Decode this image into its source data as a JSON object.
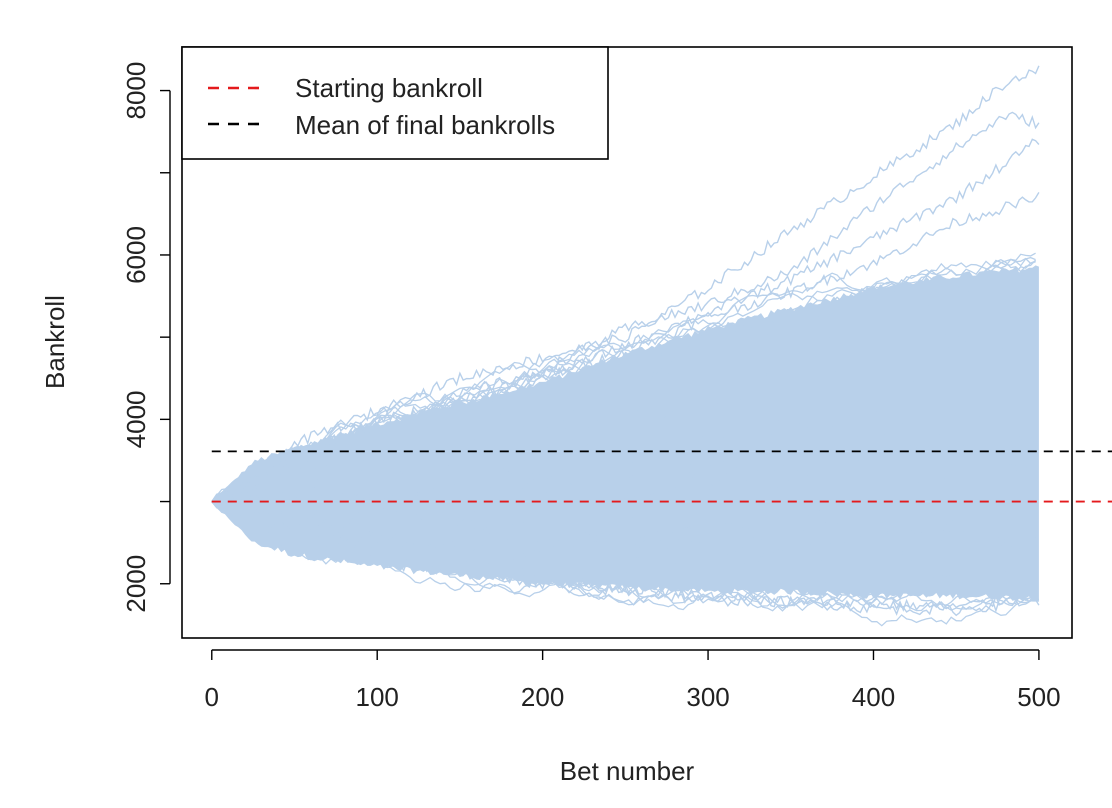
{
  "chart_data": {
    "type": "line",
    "title": "",
    "xlabel": "Bet number",
    "ylabel": "Bankroll",
    "xlim": [
      -18,
      520
    ],
    "ylim": [
      1340,
      8530
    ],
    "x_ticks": [
      0,
      100,
      200,
      300,
      400,
      500
    ],
    "y_ticks": [
      2000,
      4000,
      6000,
      8000
    ],
    "x_tick_labels": [
      "0",
      "100",
      "200",
      "300",
      "400",
      "500"
    ],
    "y_tick_labels": [
      "2000",
      "4000",
      "6000",
      "8000"
    ],
    "grid": false,
    "legend_position": "top-left",
    "simulation": {
      "start_bet": 0,
      "end_bet": 500,
      "starting_value": 3000,
      "color": "#b8d0ea"
    },
    "reference_lines": [
      {
        "name": "Starting bankroll",
        "y": 3000,
        "color": "#e41a1c",
        "style": "dashed"
      },
      {
        "name": "Mean of final bankrolls",
        "y": 3610,
        "color": "#000000",
        "style": "dashed"
      }
    ],
    "envelope": {
      "x": [
        0,
        25,
        50,
        100,
        150,
        200,
        250,
        300,
        350,
        400,
        450,
        500
      ],
      "upper_dense": [
        3000,
        3480,
        3650,
        3950,
        4200,
        4450,
        4800,
        5100,
        5350,
        5600,
        5750,
        5850
      ],
      "lower_dense": [
        3000,
        2500,
        2350,
        2200,
        2100,
        2000,
        1950,
        1900,
        1900,
        1850,
        1850,
        1820
      ]
    },
    "extreme_paths": [
      {
        "x": [
          0,
          50,
          100,
          150,
          200,
          250,
          300,
          350,
          400,
          450,
          480,
          500
        ],
        "y": [
          3000,
          3700,
          4100,
          4500,
          4750,
          5000,
          5600,
          6300,
          6950,
          7600,
          8100,
          8250
        ]
      },
      {
        "x": [
          0,
          50,
          100,
          150,
          200,
          250,
          300,
          350,
          400,
          450,
          480,
          500
        ],
        "y": [
          3000,
          3600,
          3900,
          4300,
          4600,
          5100,
          5400,
          5800,
          6600,
          7300,
          7700,
          7600
        ]
      },
      {
        "x": [
          0,
          50,
          100,
          150,
          200,
          250,
          300,
          350,
          400,
          450,
          500
        ],
        "y": [
          3000,
          3500,
          4000,
          4200,
          4500,
          4900,
          5300,
          5700,
          6200,
          6700,
          7400
        ]
      },
      {
        "x": [
          0,
          50,
          100,
          150,
          200,
          250,
          300,
          350,
          400,
          450,
          500
        ],
        "y": [
          3000,
          3550,
          3850,
          4250,
          4550,
          4800,
          5250,
          5550,
          5900,
          6400,
          6700
        ]
      },
      {
        "x": [
          0,
          50,
          100,
          150,
          200,
          250,
          300,
          350,
          400,
          450,
          500
        ],
        "y": [
          3000,
          2400,
          2250,
          2150,
          2000,
          1900,
          1800,
          1780,
          1700,
          1680,
          1800
        ]
      },
      {
        "x": [
          0,
          50,
          100,
          150,
          200,
          250,
          300,
          350,
          400,
          450,
          500
        ],
        "y": [
          3000,
          2450,
          2300,
          2150,
          2050,
          1950,
          1850,
          1800,
          1750,
          1720,
          1850
        ]
      }
    ]
  },
  "legend": {
    "items": [
      {
        "label": "Starting bankroll",
        "color": "#e41a1c"
      },
      {
        "label": "Mean of final bankrolls",
        "color": "#000000"
      }
    ]
  }
}
